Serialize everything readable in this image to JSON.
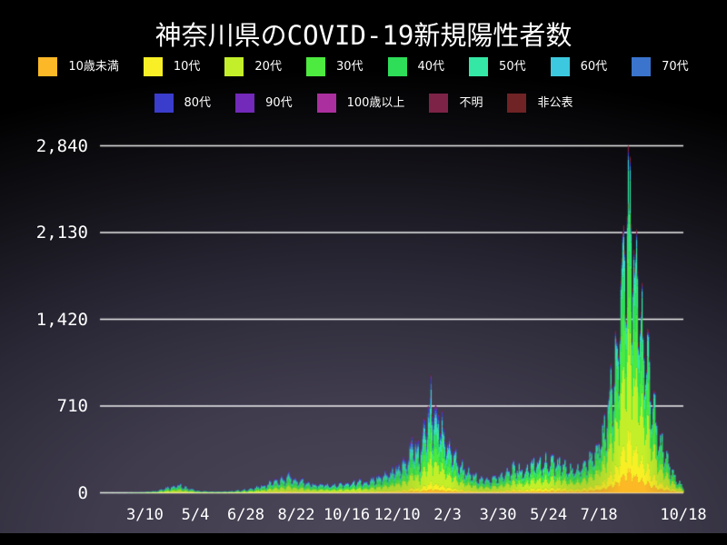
{
  "chart_data": {
    "type": "stacked_area",
    "title": "神奈川県のCOVID-19新規陽性者数",
    "series": [
      {
        "label": "10歳未満",
        "color": "#fcb826"
      },
      {
        "label": "10代",
        "color": "#f8ef26"
      },
      {
        "label": "20代",
        "color": "#c3ef2a"
      },
      {
        "label": "30代",
        "color": "#4dea3f"
      },
      {
        "label": "40代",
        "color": "#2edd58"
      },
      {
        "label": "50代",
        "color": "#35e7a4"
      },
      {
        "label": "60代",
        "color": "#3cc9df"
      },
      {
        "label": "70代",
        "color": "#3a74cc"
      },
      {
        "label": "80代",
        "color": "#3a3ccb"
      },
      {
        "label": "90代",
        "color": "#7329b9"
      },
      {
        "label": "100歳以上",
        "color": "#ab2f9e"
      },
      {
        "label": "不明",
        "color": "#7d2347"
      },
      {
        "label": "非公表",
        "color": "#6f2324"
      }
    ],
    "ylim": [
      0,
      2840
    ],
    "y_ticks": [
      0,
      710,
      1420,
      2130,
      2840
    ],
    "y_tick_labels": [
      "0",
      "710",
      "1,420",
      "2,130",
      "2,840"
    ],
    "x_ticks": {
      "labels": [
        "3/10",
        "5/4",
        "6/28",
        "8/22",
        "10/16",
        "12/10",
        "2/3",
        "3/30",
        "5/24",
        "7/18",
        "10/18"
      ],
      "days": [
        48,
        103,
        158,
        213,
        268,
        323,
        378,
        433,
        488,
        543,
        635
      ]
    },
    "days_total": 635,
    "grid": true,
    "grid_color": "#f0f0f0",
    "legend_position": "top",
    "peak_value": 2840,
    "envelope": {
      "days": [
        0,
        25,
        45,
        60,
        75,
        85,
        95,
        108,
        125,
        140,
        160,
        178,
        192,
        205,
        215,
        232,
        250,
        270,
        290,
        310,
        325,
        333,
        341,
        348,
        355,
        360,
        365,
        372,
        380,
        390,
        402,
        415,
        428,
        440,
        452,
        462,
        475,
        488,
        498,
        510,
        522,
        533,
        542,
        550,
        558,
        566,
        572,
        576,
        581,
        587,
        594,
        601,
        608,
        616,
        624,
        630,
        635
      ],
      "totals": [
        1,
        2,
        6,
        18,
        55,
        78,
        45,
        16,
        11,
        14,
        32,
        75,
        125,
        155,
        125,
        85,
        80,
        95,
        115,
        170,
        240,
        330,
        480,
        410,
        700,
        900,
        820,
        600,
        430,
        300,
        185,
        135,
        140,
        175,
        250,
        220,
        290,
        320,
        280,
        230,
        235,
        320,
        430,
        640,
        1050,
        1750,
        2300,
        2650,
        2400,
        1900,
        1350,
        850,
        560,
        330,
        180,
        100,
        55
      ]
    },
    "share_keyframes": {
      "days": [
        0,
        330,
        480,
        576,
        635
      ],
      "values": [
        [
          0.02,
          0.05,
          0.27,
          0.16,
          0.15,
          0.13,
          0.08,
          0.06,
          0.045,
          0.02,
          0.002,
          0.01,
          0.003
        ],
        [
          0.03,
          0.06,
          0.25,
          0.155,
          0.15,
          0.14,
          0.075,
          0.055,
          0.045,
          0.022,
          0.003,
          0.01,
          0.005
        ],
        [
          0.045,
          0.085,
          0.28,
          0.185,
          0.155,
          0.115,
          0.055,
          0.03,
          0.02,
          0.01,
          0.002,
          0.012,
          0.006
        ],
        [
          0.07,
          0.11,
          0.295,
          0.2,
          0.155,
          0.1,
          0.03,
          0.012,
          0.007,
          0.003,
          0.001,
          0.013,
          0.004
        ],
        [
          0.07,
          0.11,
          0.295,
          0.2,
          0.155,
          0.1,
          0.03,
          0.012,
          0.007,
          0.003,
          0.001,
          0.013,
          0.004
        ]
      ]
    },
    "weekly_pattern": [
      0.82,
      0.58,
      0.72,
      0.92,
      1.02,
      1.06,
      1.02
    ],
    "weekday_offset": 3,
    "noise": {
      "seed": 20211018,
      "min": 0.82,
      "range": 0.36
    }
  }
}
